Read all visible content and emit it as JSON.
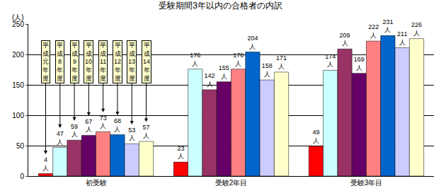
{
  "chart_data": {
    "type": "bar",
    "title": "受験期間3年以内の合格者の内訳",
    "ylabel": "(人)",
    "categories": [
      "初受験",
      "受験2年目",
      "受験3年目"
    ],
    "series": [
      {
        "name": "平成元年度",
        "color": "#ff0000",
        "values": [
          4,
          23,
          49
        ],
        "value_labels": [
          "4人",
          "23人",
          "49人"
        ]
      },
      {
        "name": "平成8年度",
        "color": "#ccffff",
        "values": [
          47,
          176,
          174
        ],
        "value_labels": [
          "47人",
          "176人",
          "174人"
        ]
      },
      {
        "name": "平成9年度",
        "color": "#993366",
        "values": [
          59,
          142,
          209
        ],
        "value_labels": [
          "59人",
          "142人",
          "209人"
        ]
      },
      {
        "name": "平成10年度",
        "color": "#660066",
        "values": [
          67,
          155,
          169
        ],
        "value_labels": [
          "67人",
          "155人",
          "169人"
        ]
      },
      {
        "name": "平成11年度",
        "color": "#ff8080",
        "values": [
          73,
          176,
          222
        ],
        "value_labels": [
          "73人",
          "176人",
          "222人"
        ]
      },
      {
        "name": "平成12年度",
        "color": "#0066cc",
        "values": [
          68,
          204,
          231
        ],
        "value_labels": [
          "68人",
          "204人",
          "231人"
        ]
      },
      {
        "name": "平成13年度",
        "color": "#ccccff",
        "values": [
          53,
          158,
          211
        ],
        "value_labels": [
          "53人",
          "158人",
          "211人"
        ]
      },
      {
        "name": "平成14年度",
        "color": "#ffffcc",
        "values": [
          57,
          171,
          226
        ],
        "value_labels": [
          "57人",
          "171人",
          "226人"
        ]
      }
    ],
    "ylim": [
      0,
      250
    ],
    "yticks": [
      0,
      50,
      100,
      150,
      200,
      250
    ],
    "grid": true,
    "data_labels": true
  }
}
